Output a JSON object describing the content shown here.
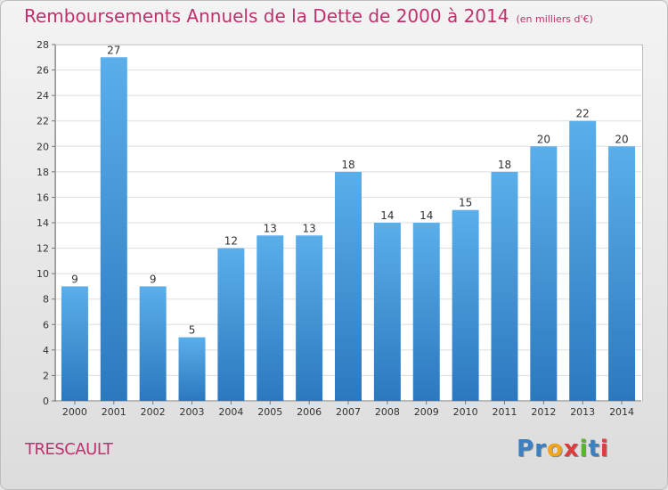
{
  "header": {
    "title": "Remboursements Annuels de la Dette de 2000 à 2014",
    "unit": "(en milliers d'€)"
  },
  "footer": {
    "place": "TRESCAULT",
    "brand": "Proxiti",
    "brand_letters": [
      "P",
      "r",
      "o",
      "x",
      "i",
      "t",
      "i"
    ],
    "brand_colors": [
      "#3b7fc4",
      "#3b7fc4",
      "#f2a51a",
      "#e03a3a",
      "#59b52c",
      "#3b7fc4",
      "#e03a3a"
    ]
  },
  "chart_data": {
    "type": "bar",
    "title": "Remboursements Annuels de la Dette de 2000 à 2014",
    "categories": [
      "2000",
      "2001",
      "2002",
      "2003",
      "2004",
      "2005",
      "2006",
      "2007",
      "2008",
      "2009",
      "2010",
      "2011",
      "2012",
      "2013",
      "2014"
    ],
    "values": [
      9,
      27,
      9,
      5,
      12,
      13,
      13,
      18,
      14,
      14,
      15,
      18,
      20,
      22,
      20
    ],
    "data_labels": [
      "9",
      "27",
      "9",
      "5",
      "12",
      "13",
      "13",
      "18",
      "14",
      "14",
      "15",
      "18",
      "20",
      "22",
      "20"
    ],
    "ylim": [
      0,
      28
    ],
    "yticks": [
      0,
      2,
      4,
      6,
      8,
      10,
      12,
      14,
      16,
      18,
      20,
      22,
      24,
      26,
      28
    ],
    "grid": true,
    "colors": {
      "bar_top": "#5aaeea",
      "bar_bottom": "#2c78bf",
      "grid": "#dddddd",
      "text": "#333333"
    }
  }
}
